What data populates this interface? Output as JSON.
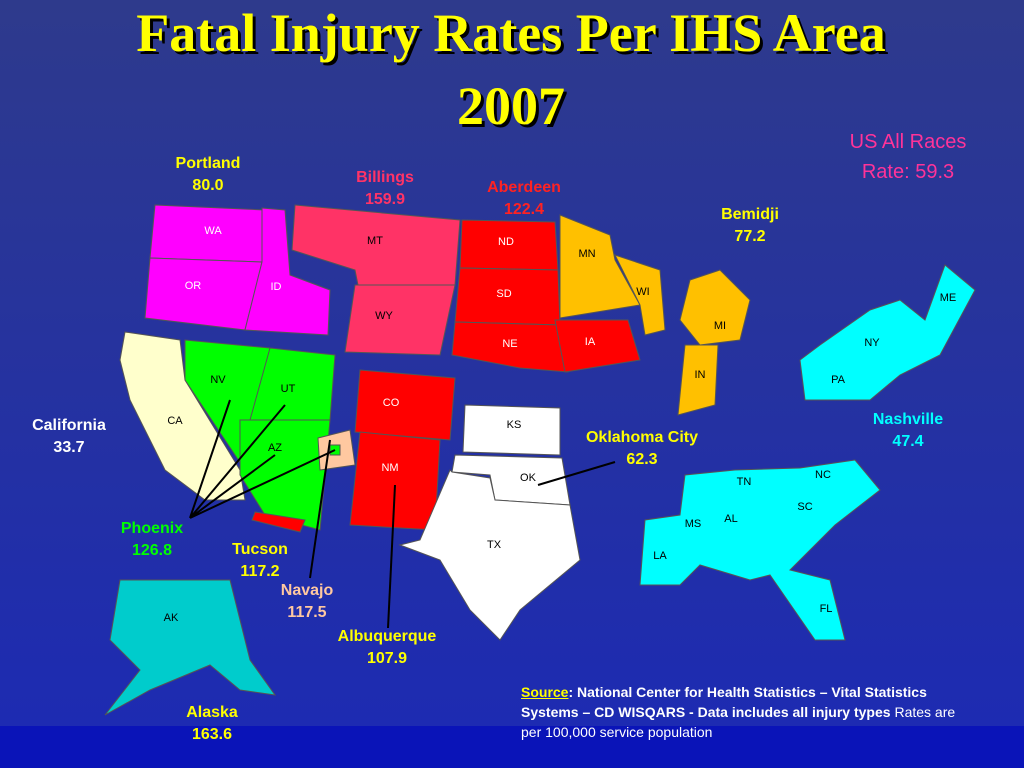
{
  "title": [
    "Fatal Injury Rates Per IHS Area",
    "2007"
  ],
  "us_rate": {
    "label": "US All Races",
    "rate": "Rate: 59.3"
  },
  "areas": [
    {
      "name": "Portland",
      "rate": "80.0"
    },
    {
      "name": "Billings",
      "rate": "159.9"
    },
    {
      "name": "Aberdeen",
      "rate": "122.4"
    },
    {
      "name": "Bemidji",
      "rate": "77.2"
    },
    {
      "name": "California",
      "rate": "33.7"
    },
    {
      "name": "Phoenix",
      "rate": "126.8"
    },
    {
      "name": "Tucson",
      "rate": "117.2"
    },
    {
      "name": "Navajo",
      "rate": "117.5"
    },
    {
      "name": "Albuquerque",
      "rate": "107.9"
    },
    {
      "name": "Oklahoma City",
      "rate": "62.3"
    },
    {
      "name": "Nashville",
      "rate": "47.4"
    },
    {
      "name": "Alaska",
      "rate": "163.6"
    }
  ],
  "states": [
    "WA",
    "OR",
    "ID",
    "MT",
    "WY",
    "ND",
    "SD",
    "NE",
    "IA",
    "MN",
    "WI",
    "MI",
    "IN",
    "ME",
    "NY",
    "PA",
    "CA",
    "NV",
    "UT",
    "AZ",
    "CO",
    "NM",
    "KS",
    "OK",
    "TX",
    "TN",
    "NC",
    "SC",
    "MS",
    "AL",
    "LA",
    "FL",
    "AK"
  ],
  "source": {
    "label": "Source",
    "text": ": National Center for Health Statistics – Vital Statistics Systems – CD  WISQARS - Data includes all injury types",
    "note": "Rates are per 100,000 service population"
  }
}
